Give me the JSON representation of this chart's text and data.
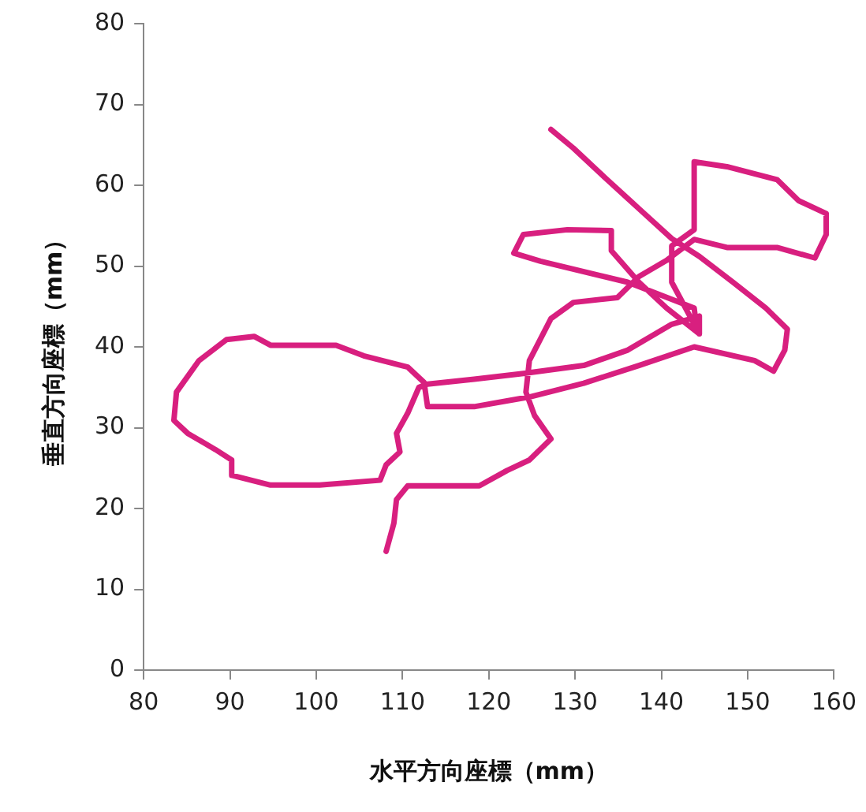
{
  "chart_data": {
    "type": "line",
    "xlabel": "水平方向座標（mm）",
    "ylabel": "垂直方向座標（mm）",
    "color": "#d81f7f",
    "marker": "none",
    "line_style": "solid",
    "grid": false,
    "x": [
      127.2,
      129.8,
      133.5,
      137.4,
      141.2,
      144.4,
      148.3,
      152.1,
      154.6,
      154.3,
      153.0,
      150.8,
      143.8,
      137.4,
      131.0,
      124.7,
      118.3,
      112.9,
      112.5,
      110.6,
      105.5,
      102.3,
      94.7,
      92.8,
      89.6,
      86.4,
      83.8,
      83.5,
      85.1,
      88.3,
      90.2,
      90.2,
      94.7,
      100.4,
      107.4,
      108.1,
      109.7,
      109.3,
      110.6,
      111.9,
      112.9,
      118.3,
      124.0,
      131.0,
      136.1,
      141.2,
      144.4,
      144.4,
      140.6,
      137.4,
      134.2,
      134.2,
      129.1,
      124.0,
      122.9,
      126.0,
      136.1,
      143.8,
      144.1,
      141.2,
      141.2,
      143.8,
      143.8,
      147.6,
      153.4,
      155.9,
      159.1,
      159.1,
      157.8,
      153.4,
      147.6,
      143.8,
      140.6,
      137.4,
      134.9,
      129.8,
      127.2,
      124.7,
      124.3,
      125.3,
      127.2,
      124.7,
      122.1,
      118.9,
      110.6,
      109.3,
      109.0,
      108.1
    ],
    "values": [
      66.9,
      64.6,
      60.9,
      57.1,
      53.4,
      51.2,
      48.0,
      44.8,
      42.2,
      39.6,
      37.0,
      38.3,
      40.0,
      37.7,
      35.5,
      33.8,
      32.6,
      32.6,
      35.6,
      37.5,
      38.9,
      40.2,
      40.2,
      41.3,
      40.9,
      38.3,
      34.4,
      30.9,
      29.3,
      27.3,
      26.0,
      24.1,
      22.9,
      22.9,
      23.5,
      25.4,
      27.0,
      29.3,
      31.8,
      35.0,
      35.4,
      36.0,
      36.7,
      37.7,
      39.6,
      42.8,
      43.8,
      41.6,
      44.8,
      48.0,
      51.9,
      54.4,
      54.5,
      53.9,
      51.6,
      50.6,
      48.0,
      44.8,
      42.2,
      48.0,
      52.5,
      54.5,
      62.9,
      62.3,
      60.7,
      58.1,
      56.5,
      53.9,
      51.0,
      52.3,
      52.3,
      53.3,
      50.7,
      48.7,
      46.1,
      45.5,
      43.5,
      38.3,
      34.4,
      31.5,
      28.6,
      26.0,
      24.7,
      22.8,
      22.8,
      21.1,
      18.2,
      14.7
    ],
    "xlim": [
      80,
      160
    ],
    "xticks": [
      80,
      90,
      100,
      110,
      120,
      130,
      140,
      150,
      160
    ],
    "ylim": [
      0,
      80
    ],
    "yticks": [
      0,
      10,
      20,
      30,
      40,
      50,
      60,
      70,
      80
    ]
  }
}
